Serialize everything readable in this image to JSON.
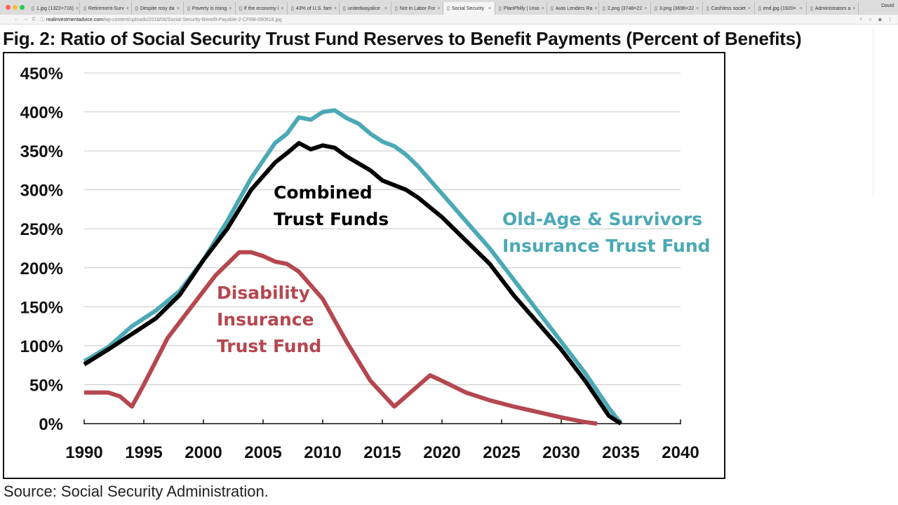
{
  "browser": {
    "tabs": [
      {
        "label": "1.jpg (1322×716)"
      },
      {
        "label": "Retirement-Surv"
      },
      {
        "label": "Despite rosy da"
      },
      {
        "label": "Poverty is rising"
      },
      {
        "label": "If the economy i"
      },
      {
        "label": "43% of U.S. fam"
      },
      {
        "label": "unitedwayalice"
      },
      {
        "label": "Not in Labor For"
      },
      {
        "label": "Social Security"
      },
      {
        "label": "PlanPhilly | Unio"
      },
      {
        "label": "Auto Lenders Ra"
      },
      {
        "label": "2.png (3748×22"
      },
      {
        "label": "3.png (3696×22"
      },
      {
        "label": "Cashless societ"
      },
      {
        "label": "end.jpg (1920×"
      },
      {
        "label": "Administrators a"
      }
    ],
    "active_tab": 8,
    "user": "David",
    "url_domain": "realinvestmentadvice.com",
    "url_path": "/wp-content/uploads/2018/06/Social-Security-Benefit-Payable-2-CFRB-060618.jpg"
  },
  "page": {
    "title": "Fig. 2: Ratio of Social Security Trust Fund Reserves to Benefit Payments (Percent of Benefits)",
    "source": "Source: Social Security Administration."
  },
  "chart_data": {
    "type": "line",
    "title": "Fig. 2: Ratio of Social Security Trust Fund Reserves to Benefit Payments (Percent of Benefits)",
    "xlabel": "",
    "ylabel": "",
    "xlim": [
      1990,
      2040
    ],
    "ylim": [
      0,
      450
    ],
    "xticks": [
      "1990",
      "1995",
      "2000",
      "2005",
      "2010",
      "2015",
      "2020",
      "2025",
      "2030",
      "2035",
      "2040"
    ],
    "yticks": [
      "0%",
      "50%",
      "100%",
      "150%",
      "200%",
      "250%",
      "300%",
      "350%",
      "400%",
      "450%"
    ],
    "grid": true,
    "series": [
      {
        "name": "Old-Age & Survivors Insurance Trust Fund",
        "label_lines": [
          "Old-Age & Survivors",
          "Insurance Trust Fund"
        ],
        "color": "#4ba9b5",
        "x": [
          1990,
          1992,
          1994,
          1996,
          1998,
          2000,
          2002,
          2004,
          2006,
          2007,
          2008,
          2009,
          2010,
          2011,
          2012,
          2013,
          2014,
          2015,
          2016,
          2017,
          2018,
          2020,
          2022,
          2024,
          2026,
          2028,
          2030,
          2032,
          2034,
          2035
        ],
        "y": [
          80,
          98,
          125,
          145,
          170,
          210,
          260,
          315,
          360,
          372,
          393,
          390,
          400,
          402,
          392,
          385,
          372,
          362,
          356,
          345,
          330,
          295,
          260,
          225,
          185,
          145,
          105,
          65,
          20,
          0
        ]
      },
      {
        "name": "Combined Trust Funds",
        "label_lines": [
          "Combined",
          "Trust Funds"
        ],
        "color": "#000000",
        "x": [
          1990,
          1992,
          1994,
          1996,
          1998,
          2000,
          2002,
          2004,
          2006,
          2007,
          2008,
          2009,
          2010,
          2011,
          2012,
          2014,
          2015,
          2017,
          2018,
          2020,
          2022,
          2024,
          2026,
          2028,
          2030,
          2032,
          2034,
          2035
        ],
        "y": [
          76,
          95,
          115,
          135,
          165,
          210,
          250,
          300,
          335,
          347,
          360,
          352,
          357,
          354,
          343,
          325,
          312,
          300,
          290,
          265,
          235,
          205,
          165,
          130,
          95,
          55,
          10,
          0
        ]
      },
      {
        "name": "Disability Insurance Trust Fund",
        "label_lines": [
          "Disability",
          "Insurance",
          "Trust Fund"
        ],
        "color": "#b5474f",
        "x": [
          1990,
          1992,
          1993,
          1994,
          1995,
          1997,
          1999,
          2001,
          2003,
          2004,
          2005,
          2006,
          2007,
          2008,
          2010,
          2012,
          2014,
          2016,
          2019,
          2020,
          2022,
          2024,
          2026,
          2028,
          2030,
          2032,
          2033
        ],
        "y": [
          40,
          40,
          35,
          22,
          50,
          110,
          150,
          190,
          220,
          220,
          215,
          208,
          205,
          195,
          160,
          105,
          55,
          22,
          62,
          55,
          40,
          30,
          22,
          15,
          8,
          2,
          0
        ]
      }
    ]
  }
}
